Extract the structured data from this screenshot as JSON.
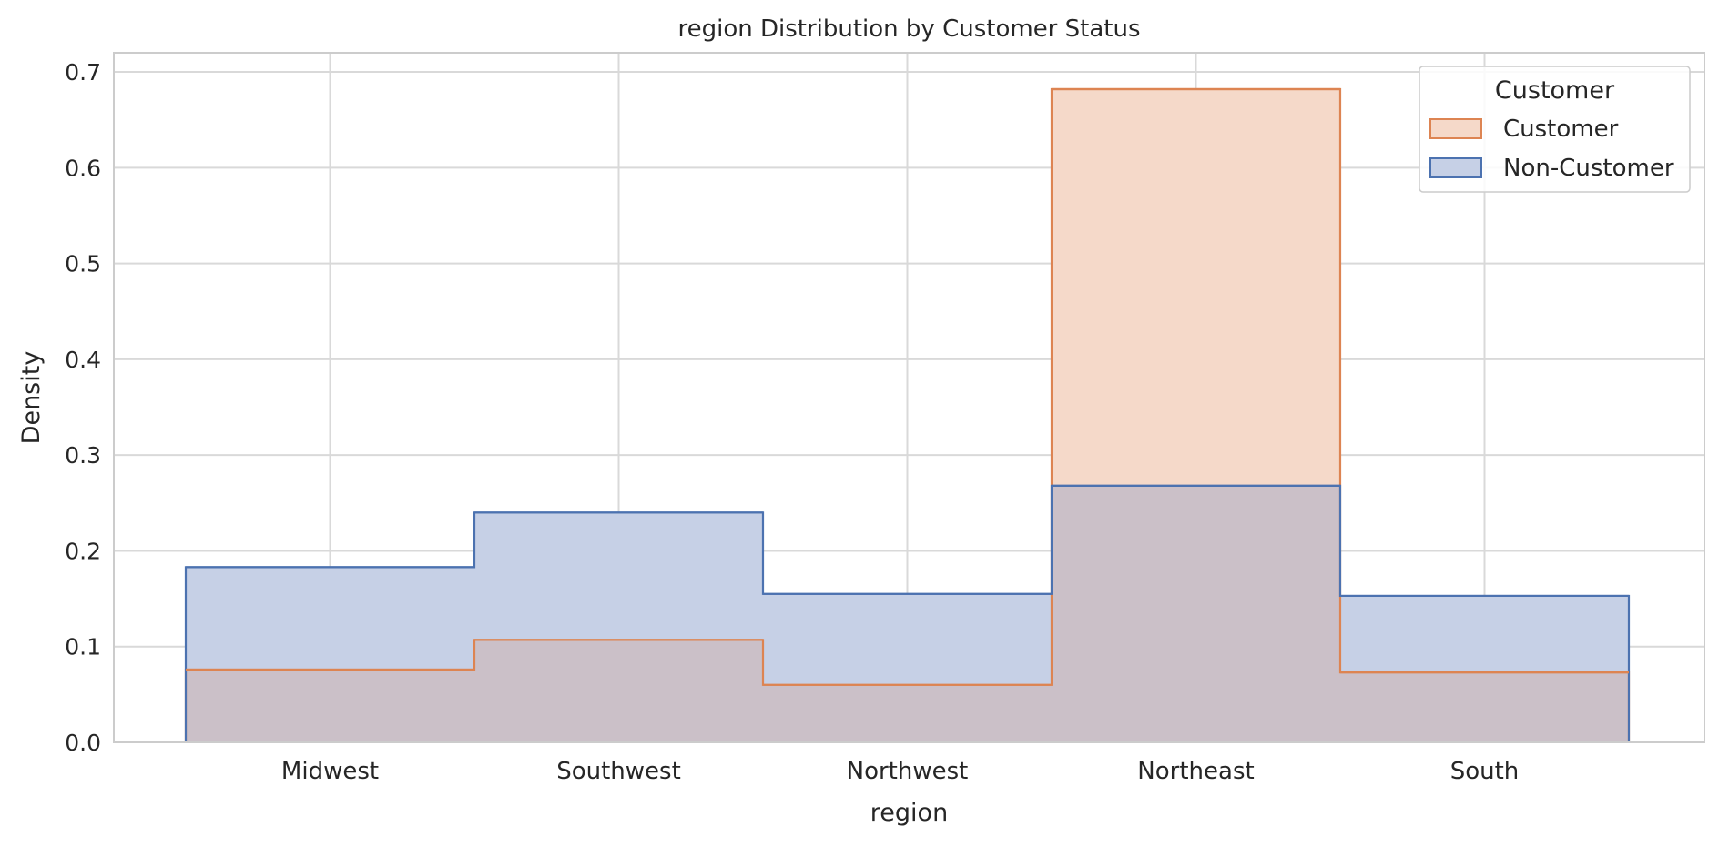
{
  "chart_data": {
    "type": "histogram-step",
    "title": "region Distribution by Customer Status",
    "xlabel": "region",
    "ylabel": "Density",
    "categories": [
      "Midwest",
      "Southwest",
      "Northwest",
      "Northeast",
      "South"
    ],
    "ylim": [
      0,
      0.72
    ],
    "yticks": [
      0.0,
      0.1,
      0.2,
      0.3,
      0.4,
      0.5,
      0.6,
      0.7
    ],
    "ytick_labels": [
      "0.0",
      "0.1",
      "0.2",
      "0.3",
      "0.4",
      "0.5",
      "0.6",
      "0.7"
    ],
    "grid": true,
    "legend": {
      "title": "Customer",
      "placement": "top-right"
    },
    "series": [
      {
        "name": "Customer",
        "color": "#dd8452",
        "fill": "#f5d9c9",
        "values": [
          0.076,
          0.107,
          0.06,
          0.682,
          0.073
        ]
      },
      {
        "name": "Non-Customer",
        "color": "#4c72b0",
        "fill": "#c6d0e6",
        "values": [
          0.183,
          0.24,
          0.155,
          0.268,
          0.153
        ]
      }
    ],
    "overlap_fill": "#cbc0c8"
  }
}
